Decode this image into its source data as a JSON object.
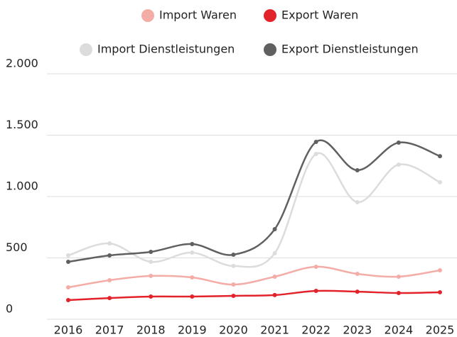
{
  "chart_data": {
    "type": "line",
    "categories": [
      "2016",
      "2017",
      "2018",
      "2019",
      "2020",
      "2021",
      "2022",
      "2023",
      "2024",
      "2025"
    ],
    "series": [
      {
        "name": "Import Waren",
        "color": "#f4aca6",
        "values": [
          260,
          318,
          353,
          341,
          283,
          347,
          428,
          370,
          347,
          399
        ]
      },
      {
        "name": "Export Waren",
        "color": "#e3232b",
        "values": [
          156,
          173,
          185,
          185,
          191,
          197,
          231,
          225,
          214,
          220
        ]
      },
      {
        "name": "Import Dienstleistungen",
        "color": "#dcdcdc",
        "values": [
          520,
          618,
          468,
          543,
          434,
          538,
          1347,
          954,
          1260,
          1116
        ]
      },
      {
        "name": "Export Dienstleistungen",
        "color": "#606060",
        "values": [
          468,
          520,
          549,
          613,
          526,
          734,
          1445,
          1214,
          1439,
          1329
        ]
      }
    ],
    "ylim": [
      0,
      2000
    ],
    "yticks": [
      0,
      500,
      {
        "value": 1000,
        "label": "1.000"
      },
      {
        "value": 1500,
        "label": "1.500"
      },
      {
        "value": 2000,
        "label": "2.000"
      }
    ],
    "grid": true
  }
}
